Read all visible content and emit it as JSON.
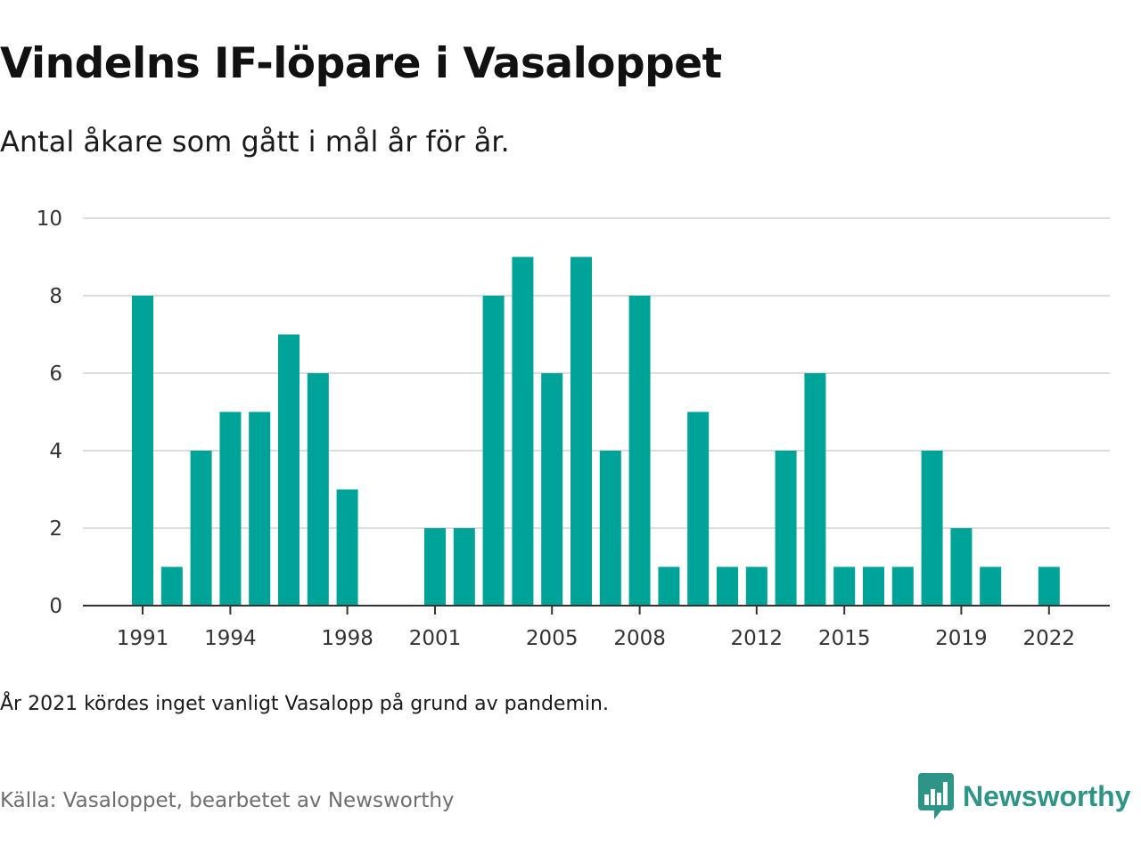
{
  "title": "Vindelns IF-löpare i Vasaloppet",
  "subtitle": "Antal åkare som gått i mål år för år.",
  "note": "År 2021 kördes inget vanligt Vasalopp på grund av pandemin.",
  "source": "Källa: Vasaloppet, bearbetet av Newsworthy",
  "brand": {
    "name": "Newsworthy",
    "icon": "newsworthy-logo-icon",
    "color": "#2e9586"
  },
  "chart_data": {
    "type": "bar",
    "title": "Vindelns IF-löpare i Vasaloppet",
    "subtitle": "Antal åkare som gått i mål år för år.",
    "xlabel": "",
    "ylabel": "",
    "ylim": [
      0,
      10
    ],
    "yticks": [
      0,
      2,
      4,
      6,
      8,
      10
    ],
    "xticks": [
      1991,
      1994,
      1998,
      2001,
      2005,
      2008,
      2012,
      2015,
      2019,
      2022
    ],
    "grid": true,
    "legend": "none",
    "bar_color": "#00a398",
    "categories": [
      1991,
      1992,
      1993,
      1994,
      1995,
      1996,
      1997,
      1998,
      1999,
      2000,
      2001,
      2002,
      2003,
      2004,
      2005,
      2006,
      2007,
      2008,
      2009,
      2010,
      2011,
      2012,
      2013,
      2014,
      2015,
      2016,
      2017,
      2018,
      2019,
      2020,
      2021,
      2022
    ],
    "values": [
      8,
      1,
      4,
      5,
      5,
      7,
      6,
      3,
      0,
      0,
      2,
      2,
      8,
      9,
      6,
      9,
      4,
      8,
      1,
      5,
      1,
      1,
      4,
      6,
      1,
      1,
      1,
      4,
      2,
      1,
      0,
      1
    ]
  }
}
